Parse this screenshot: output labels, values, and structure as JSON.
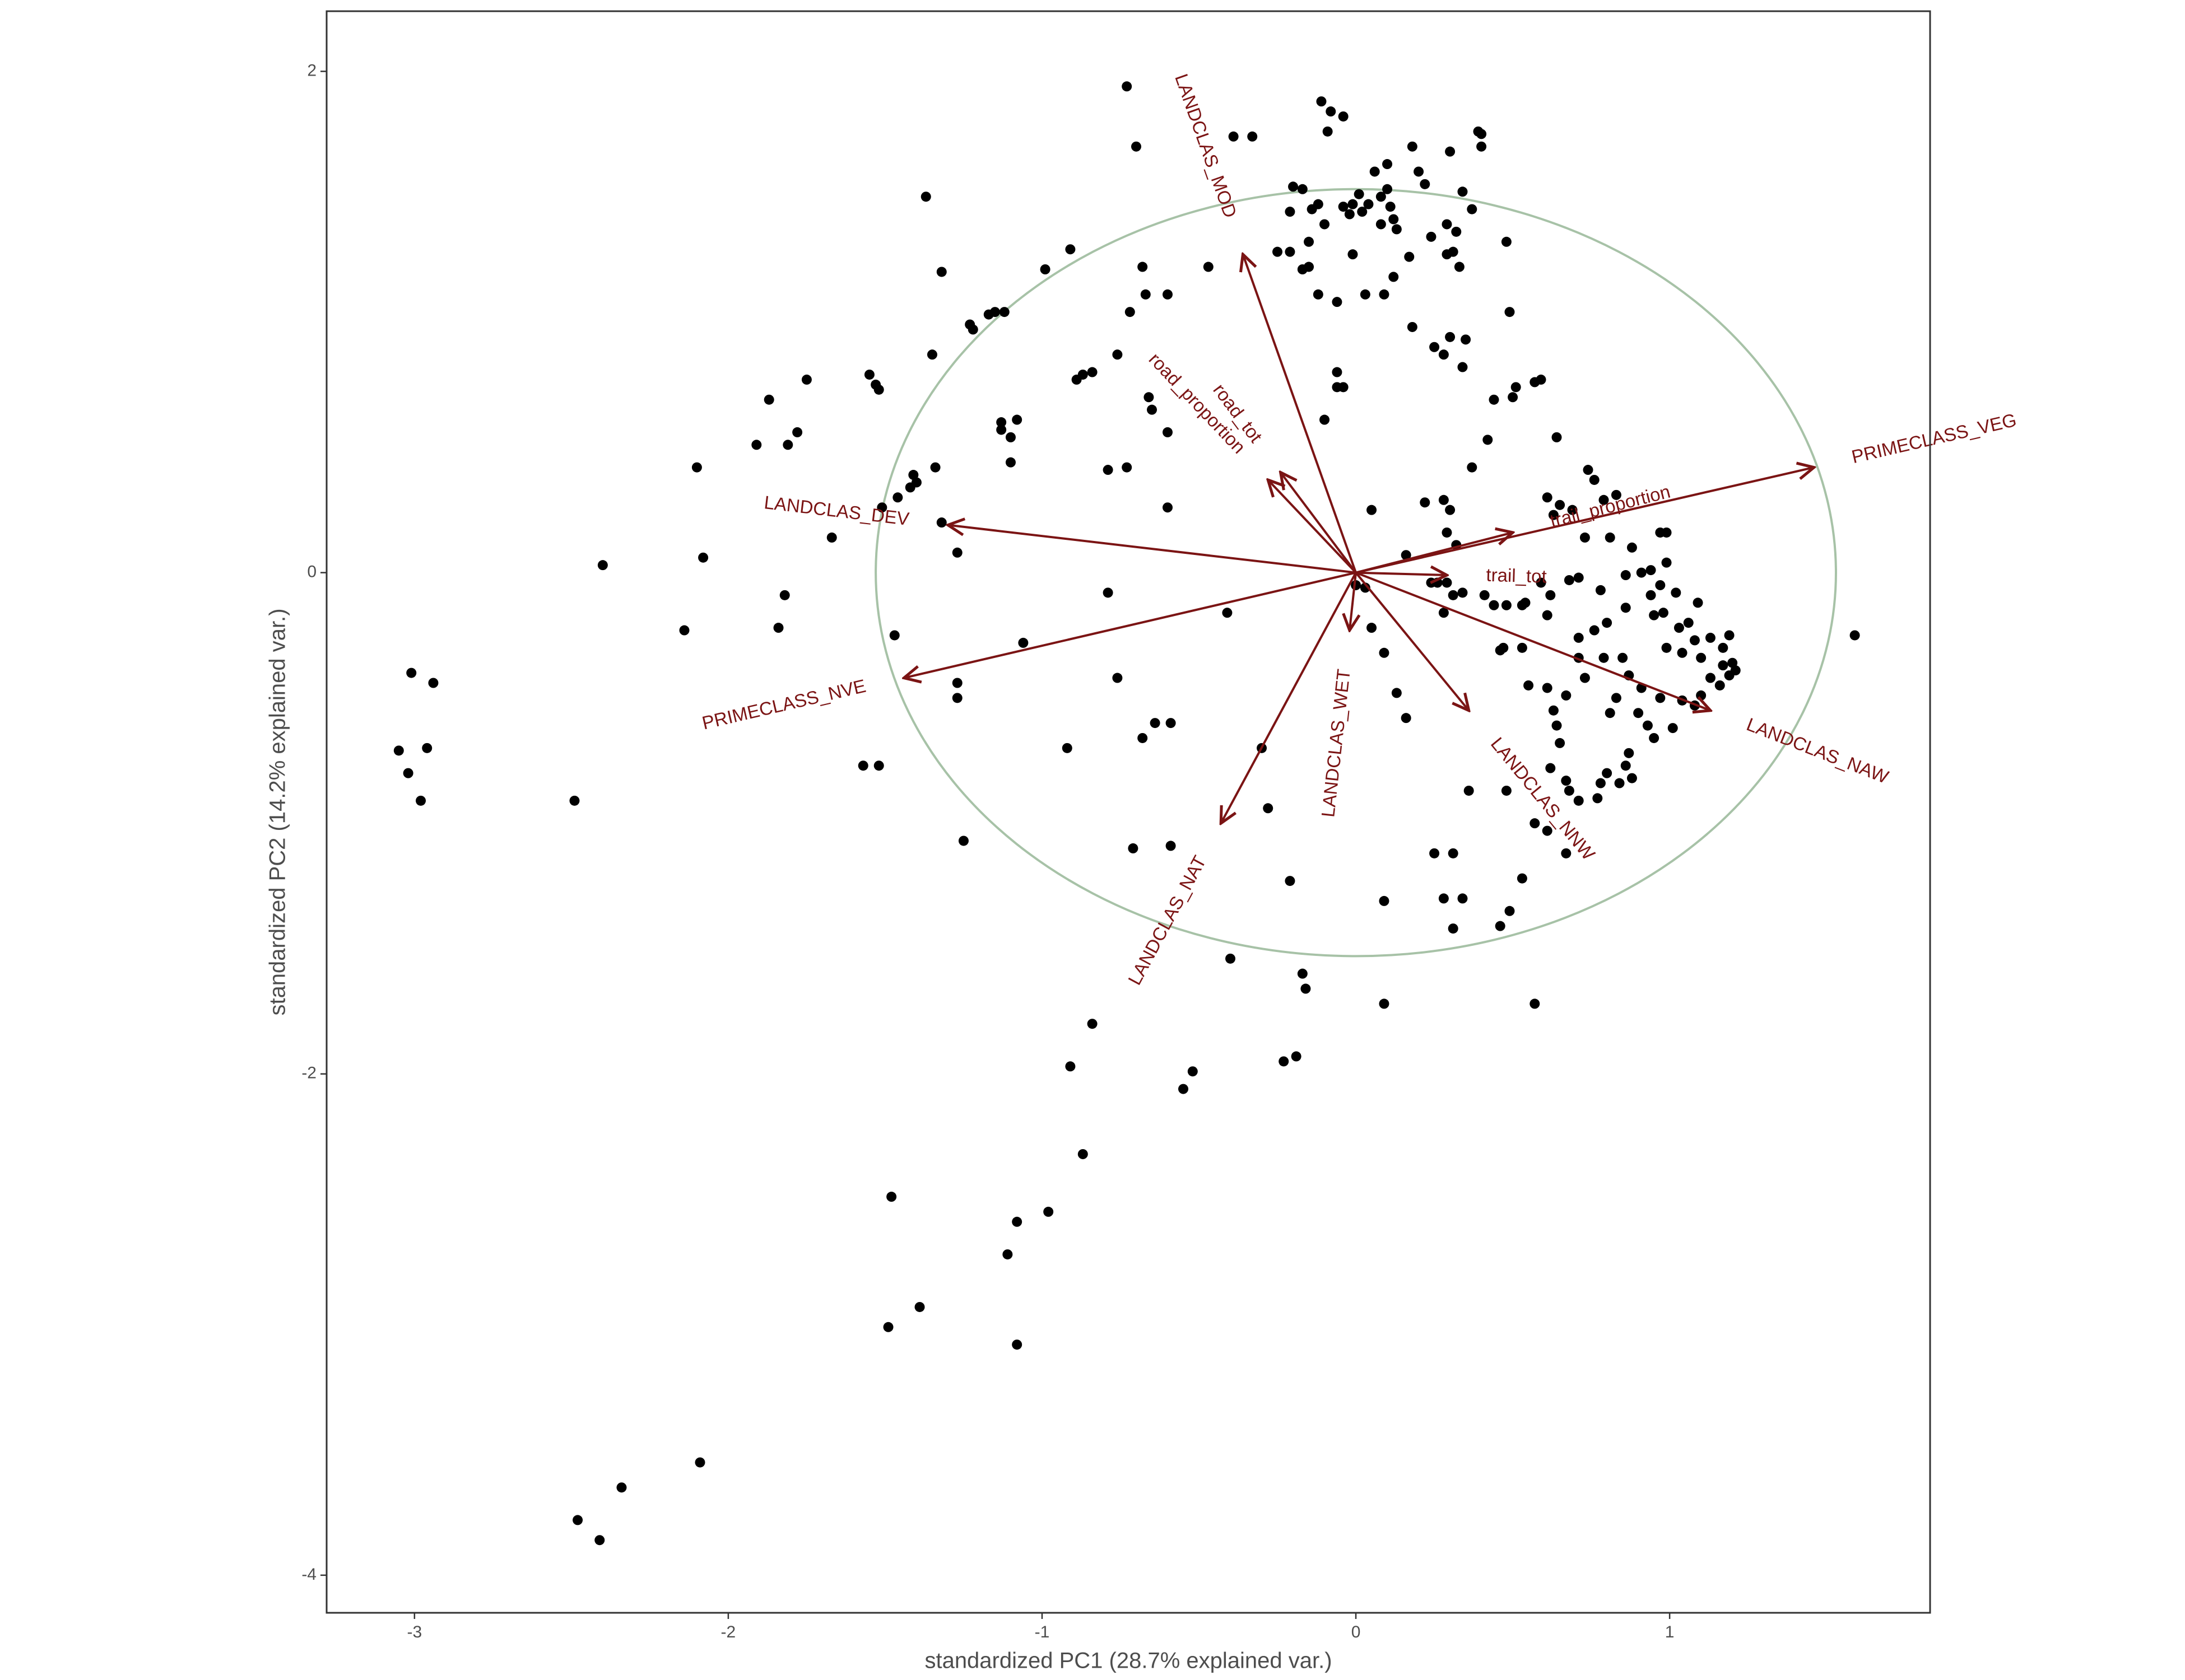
{
  "chart_data": {
    "type": "biplot",
    "x_label": "standardized PC1 (28.7% explained var.)",
    "y_label": "standardized PC2 (14.2% explained var.)",
    "xlim": [
      -3.28,
      1.83
    ],
    "ylim": [
      -4.15,
      2.24
    ],
    "xticks": [
      -3,
      -2,
      -1,
      0,
      1
    ],
    "yticks": [
      -4,
      -2,
      0,
      2
    ],
    "grid": false,
    "color": "#000000",
    "arrow_color": "#7b1414",
    "circle_color": "#a7c2a7",
    "circle_radius": 1.53,
    "x": [
      -3.05,
      -3.02,
      -3.01,
      -2.94,
      -2.96,
      -2.98,
      -2.49,
      -2.4,
      -2.08,
      -2.1,
      -2.14,
      -1.91,
      -1.87,
      -1.78,
      -1.81,
      -1.75,
      -1.84,
      -1.82,
      -1.67,
      -1.55,
      -1.52,
      -1.53,
      -1.57,
      -1.52,
      -1.47,
      -1.51,
      -1.46,
      -1.42,
      -1.41,
      -1.4,
      -1.34,
      -1.32,
      -1.27,
      -1.27,
      -1.27,
      -1.25,
      -1.48,
      -1.49,
      -1.39,
      -2.09,
      -2.34,
      -2.48,
      -2.41,
      -1.35,
      -1.37,
      -1.32,
      -1.23,
      -1.22,
      -1.17,
      -1.15,
      -1.12,
      -0.99,
      -0.91,
      -0.73,
      -0.7,
      -0.68,
      -0.67,
      -0.6,
      -0.47,
      -0.39,
      -0.33,
      -1.13,
      -1.13,
      -1.1,
      -1.08,
      -1.1,
      -1.06,
      -0.92,
      -0.87,
      -0.84,
      -0.89,
      -0.76,
      -0.72,
      -0.79,
      -0.73,
      -0.66,
      -0.65,
      -0.6,
      -0.6,
      -0.79,
      -0.76,
      -0.68,
      -0.64,
      -0.59,
      -0.71,
      -0.59,
      -0.41,
      -0.4,
      -0.28,
      -0.3,
      -0.84,
      -0.91,
      -0.87,
      -0.98,
      -1.08,
      -1.11,
      -1.08,
      -0.55,
      -0.52,
      -0.23,
      -0.19,
      -0.17,
      -0.16,
      -0.21,
      -0.11,
      -0.08,
      -0.04,
      -0.09,
      -0.2,
      -0.17,
      -0.21,
      -0.12,
      -0.14,
      -0.1,
      -0.04,
      -0.02,
      -0.01,
      0.01,
      0.02,
      0.04,
      0.08,
      0.1,
      0.11,
      0.12,
      0.08,
      0.13,
      0.06,
      0.1,
      0.2,
      0.22,
      0.18,
      0.3,
      0.39,
      0.4,
      0.4,
      0.34,
      0.37,
      0.29,
      0.24,
      0.32,
      0.31,
      0.33,
      0.29,
      0.48,
      0.49,
      0.17,
      0.12,
      0.09,
      0.03,
      -0.01,
      -0.06,
      -0.12,
      -0.17,
      -0.25,
      -0.21,
      -0.15,
      -0.15,
      -0.06,
      -0.06,
      -0.1,
      -0.04,
      0.18,
      0.25,
      0.3,
      0.35,
      0.34,
      0.28,
      0.51,
      0.57,
      0.59,
      0.44,
      0.5,
      0.37,
      0.42,
      0.64,
      0.74,
      0.76,
      0.65,
      0.63,
      0.61,
      0.69,
      0.79,
      0.83,
      0.81,
      0.73,
      0.88,
      0.97,
      0.99,
      0.91,
      0.94,
      0.97,
      0.94,
      0.98,
      0.95,
      1.03,
      0.99,
      1.04,
      1.1,
      1.08,
      1.09,
      1.17,
      1.17,
      1.2,
      1.21,
      1.19,
      1.16,
      1.13,
      1.1,
      1.08,
      1.04,
      1.01,
      0.95,
      0.93,
      0.9,
      0.87,
      0.86,
      0.88,
      0.84,
      0.8,
      0.78,
      0.77,
      0.71,
      0.68,
      0.67,
      0.62,
      0.65,
      0.64,
      0.63,
      0.67,
      0.61,
      0.55,
      0.46,
      0.47,
      0.53,
      0.61,
      0.62,
      0.59,
      0.68,
      0.71,
      0.78,
      0.86,
      0.8,
      0.76,
      0.79,
      0.85,
      0.87,
      0.91,
      0.97,
      0.83,
      0.81,
      0.73,
      0.71,
      0.71,
      0.86,
      0.99,
      1.59,
      1.13,
      1.06,
      1.02,
      1.19,
      0.54,
      0.53,
      0.44,
      0.48,
      0.41,
      0.34,
      0.31,
      0.28,
      0.29,
      0.24,
      0.22,
      0.28,
      0.3,
      0.29,
      0.32,
      0.16,
      0.05,
      0.03,
      0.0,
      0.05,
      0.09,
      0.13,
      0.16,
      0.26,
      0.31,
      0.36,
      0.25,
      0.28,
      0.34,
      0.49,
      0.46,
      0.31,
      0.09,
      0.09,
      0.57,
      0.53,
      0.61,
      0.57,
      0.48,
      0.67
    ],
    "y": [
      -0.71,
      -0.8,
      -0.4,
      -0.44,
      -0.7,
      -0.91,
      -0.91,
      0.03,
      0.06,
      0.42,
      -0.23,
      0.51,
      0.69,
      0.56,
      0.51,
      0.77,
      -0.22,
      -0.09,
      0.14,
      0.79,
      0.73,
      0.75,
      -0.77,
      -0.77,
      -0.25,
      0.26,
      0.3,
      0.34,
      0.39,
      0.36,
      0.42,
      0.2,
      0.08,
      -0.44,
      -0.5,
      -1.07,
      -2.49,
      -3.01,
      -2.93,
      -3.55,
      -3.65,
      -3.78,
      -3.86,
      0.87,
      1.5,
      1.2,
      0.99,
      0.97,
      1.03,
      1.04,
      1.04,
      1.21,
      1.29,
      1.94,
      1.7,
      1.22,
      1.11,
      1.11,
      1.22,
      1.74,
      1.74,
      0.6,
      0.57,
      0.54,
      0.61,
      0.44,
      -0.28,
      -0.7,
      0.79,
      0.8,
      0.77,
      0.87,
      1.04,
      0.41,
      0.42,
      0.7,
      0.65,
      0.56,
      0.26,
      -0.08,
      -0.42,
      -0.66,
      -0.6,
      -0.6,
      -1.1,
      -1.09,
      -0.16,
      -1.54,
      -0.94,
      -0.7,
      -1.8,
      -1.97,
      -2.32,
      -2.55,
      -2.59,
      -2.72,
      -3.08,
      -2.06,
      -1.99,
      -1.95,
      -1.93,
      -1.6,
      -1.66,
      -1.23,
      1.88,
      1.84,
      1.82,
      1.76,
      1.54,
      1.53,
      1.44,
      1.47,
      1.45,
      1.39,
      1.46,
      1.43,
      1.47,
      1.51,
      1.44,
      1.47,
      1.5,
      1.53,
      1.46,
      1.41,
      1.39,
      1.37,
      1.6,
      1.63,
      1.6,
      1.55,
      1.7,
      1.68,
      1.76,
      1.7,
      1.75,
      1.52,
      1.45,
      1.39,
      1.34,
      1.36,
      1.28,
      1.22,
      1.27,
      1.32,
      1.04,
      1.26,
      1.18,
      1.11,
      1.11,
      1.27,
      1.08,
      1.11,
      1.21,
      1.28,
      1.28,
      1.32,
      1.22,
      0.8,
      0.74,
      0.61,
      0.74,
      0.98,
      0.9,
      0.94,
      0.93,
      0.82,
      0.87,
      0.74,
      0.76,
      0.77,
      0.69,
      0.7,
      0.42,
      0.53,
      0.54,
      0.41,
      0.37,
      0.27,
      0.23,
      0.3,
      0.25,
      0.29,
      0.31,
      0.14,
      0.14,
      0.1,
      0.16,
      0.16,
      0.0,
      0.01,
      -0.05,
      -0.09,
      -0.16,
      -0.17,
      -0.22,
      -0.3,
      -0.32,
      -0.34,
      -0.27,
      -0.12,
      -0.3,
      -0.37,
      -0.36,
      -0.39,
      -0.41,
      -0.45,
      -0.42,
      -0.49,
      -0.53,
      -0.51,
      -0.62,
      -0.66,
      -0.61,
      -0.56,
      -0.72,
      -0.77,
      -0.82,
      -0.84,
      -0.8,
      -0.84,
      -0.9,
      -0.91,
      -0.87,
      -0.83,
      -0.78,
      -0.68,
      -0.61,
      -0.55,
      -0.49,
      -0.46,
      -0.45,
      -0.31,
      -0.3,
      -0.3,
      -0.17,
      -0.09,
      -0.04,
      -0.03,
      -0.02,
      -0.07,
      -0.14,
      -0.2,
      -0.23,
      -0.34,
      -0.34,
      -0.41,
      -0.46,
      -0.5,
      -0.5,
      -0.56,
      -0.42,
      -0.34,
      -0.26,
      -0.01,
      0.04,
      -0.25,
      -0.26,
      -0.2,
      -0.08,
      -0.25,
      -0.12,
      -0.13,
      -0.13,
      -0.13,
      -0.09,
      -0.08,
      -0.09,
      -0.16,
      -0.04,
      -0.04,
      0.28,
      0.29,
      0.25,
      0.16,
      0.11,
      0.07,
      0.25,
      -0.06,
      -0.05,
      -0.22,
      -0.32,
      -0.48,
      -0.58,
      -0.04,
      -1.12,
      -0.87,
      -1.12,
      -1.3,
      -1.3,
      -1.35,
      -1.41,
      -1.42,
      -1.31,
      -1.72,
      -1.72,
      -1.22,
      -1.03,
      -1.0,
      -0.87,
      -1.12
    ],
    "arrows": [
      {
        "label": "LANDCLAS_MOD",
        "x": -0.36,
        "y": 1.27
      },
      {
        "label": "road_tot",
        "x": -0.24,
        "y": 0.4
      },
      {
        "label": "road_proportion",
        "x": -0.28,
        "y": 0.37
      },
      {
        "label": "LANDCLAS_DEV",
        "x": -1.3,
        "y": 0.19
      },
      {
        "label": "PRIMECLASS_NVE",
        "x": -1.44,
        "y": -0.42
      },
      {
        "label": "LANDCLAS_NAT",
        "x": -0.43,
        "y": -1.0
      },
      {
        "label": "LANDCLAS_WET",
        "x": -0.02,
        "y": -0.23
      },
      {
        "label": "LANDCLAS_NNW",
        "x": 0.36,
        "y": -0.55
      },
      {
        "label": "LANDCLAS_NAW",
        "x": 1.13,
        "y": -0.55
      },
      {
        "label": "PRIMECLASS_VEG",
        "x": 1.46,
        "y": 0.42
      },
      {
        "label": "trail_proportion",
        "x": 0.5,
        "y": 0.16
      },
      {
        "label": "trail_tot",
        "x": 0.29,
        "y": -0.01
      }
    ]
  }
}
